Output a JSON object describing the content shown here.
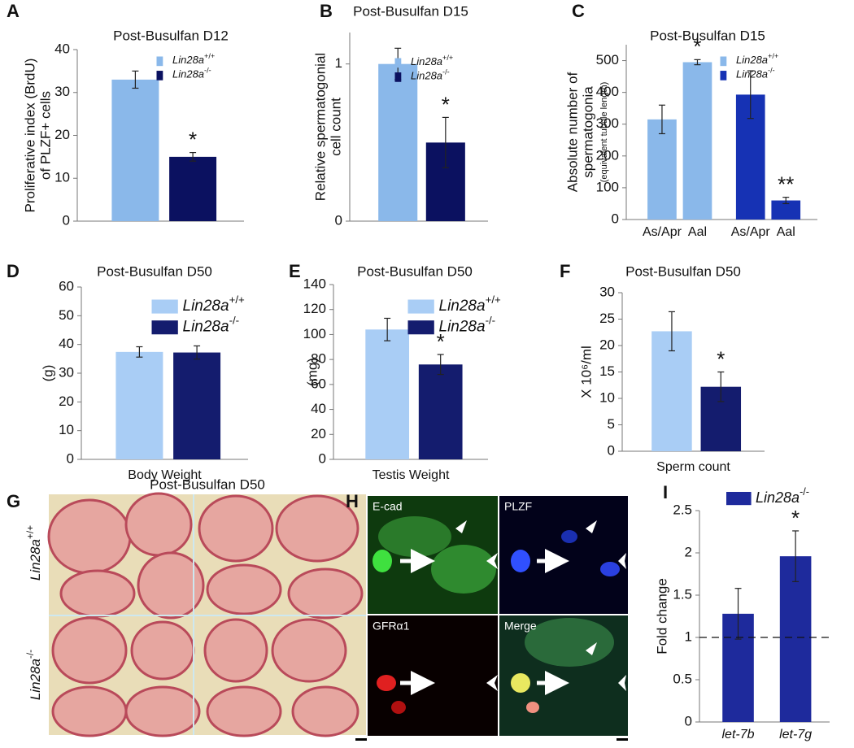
{
  "chart_data": [
    {
      "label": "A",
      "type": "bar",
      "title": "Post-Busulfan D12",
      "ylabel": [
        "Proliferative index (BrdU)",
        "of PLZF+ cells"
      ],
      "categories": [
        null
      ],
      "series": [
        {
          "name": "Lin28a+/+",
          "color": "#8ab8ea",
          "values": [
            33
          ],
          "errors": [
            2
          ]
        },
        {
          "name": "Lin28a-/-",
          "color": "#0b1160",
          "values": [
            15
          ],
          "errors": [
            1
          ],
          "annotations": [
            "*"
          ]
        }
      ],
      "ylim": [
        0,
        40
      ],
      "yticks": [
        0,
        10,
        20,
        30,
        40
      ]
    },
    {
      "label": "B",
      "type": "bar",
      "title": "Post-Busulfan D15",
      "ylabel": [
        "Relative spermatogonial",
        "cell count"
      ],
      "categories": [
        null
      ],
      "series": [
        {
          "name": "Lin28a+/+",
          "color": "#8ab8ea",
          "values": [
            1.0
          ],
          "errors": [
            0.1
          ]
        },
        {
          "name": "Lin28a-/-",
          "color": "#0b1160",
          "values": [
            0.5
          ],
          "errors": [
            0.16
          ],
          "annotations": [
            "*"
          ]
        }
      ],
      "ylim": [
        0,
        1.2
      ],
      "yticks": [
        0,
        1
      ]
    },
    {
      "label": "C",
      "type": "bar",
      "title": "Post-Busulfan D15",
      "ylabel": [
        "Absolute number of",
        "spermatogonia",
        "(equivalent tubule length)"
      ],
      "categories": [
        "As/Apr",
        "Aal"
      ],
      "group_by": "series",
      "series": [
        {
          "name": "Lin28a+/+",
          "color": "#8ab8ea",
          "values": [
            315,
            495
          ],
          "errors": [
            45,
            8
          ],
          "annotations": [
            null,
            "*"
          ]
        },
        {
          "name": "Lin28a-/-",
          "color": "#1632b4",
          "values": [
            393,
            60
          ],
          "errors": [
            75,
            10
          ],
          "annotations": [
            null,
            "**"
          ]
        }
      ],
      "ylim": [
        0,
        550
      ],
      "yticks": [
        0,
        100,
        200,
        300,
        400,
        500
      ]
    },
    {
      "label": "D",
      "type": "bar",
      "title": "Post-Busulfan D50",
      "ylabel": [
        "(g)"
      ],
      "xlabel": "Body Weight",
      "categories": [
        null
      ],
      "series": [
        {
          "name": "Lin28a+/+",
          "color": "#a9cdf5",
          "values": [
            37.4
          ],
          "errors": [
            1.8
          ]
        },
        {
          "name": "Lin28a-/-",
          "color": "#141c6e",
          "values": [
            37.2
          ],
          "errors": [
            2.3
          ]
        }
      ],
      "ylim": [
        0,
        60
      ],
      "yticks": [
        0,
        10,
        20,
        30,
        40,
        50,
        60
      ]
    },
    {
      "label": "E",
      "type": "bar",
      "title": "Post-Busulfan D50",
      "ylabel": [
        "(mg)"
      ],
      "xlabel": "Testis Weight",
      "categories": [
        null
      ],
      "series": [
        {
          "name": "Lin28a+/+",
          "color": "#a9cdf5",
          "values": [
            104
          ],
          "errors": [
            9
          ]
        },
        {
          "name": "Lin28a-/-",
          "color": "#141c6e",
          "values": [
            76
          ],
          "errors": [
            8
          ],
          "annotations": [
            "*"
          ]
        }
      ],
      "ylim": [
        0,
        140
      ],
      "yticks": [
        0,
        20,
        40,
        60,
        80,
        100,
        120,
        140
      ]
    },
    {
      "label": "F",
      "type": "bar",
      "title": "Post-Busulfan D50",
      "ylabel": [
        "X 10⁶/ml"
      ],
      "xlabel": "Sperm count",
      "categories": [
        null,
        null
      ],
      "values": [
        22.7,
        12.2
      ],
      "errors": [
        3.7,
        2.8
      ],
      "colors": [
        "#a9cdf5",
        "#141c6e"
      ],
      "annotations": [
        null,
        "*"
      ],
      "ylim": [
        0,
        30
      ],
      "yticks": [
        0,
        5,
        10,
        15,
        20,
        25,
        30
      ]
    },
    {
      "label": "I",
      "type": "bar",
      "ylabel": [
        "Fold change"
      ],
      "categories": [
        "let-7b",
        "let-7g"
      ],
      "series": [
        {
          "name": "Lin28a-/-",
          "color": "#1e2a9c",
          "values": [
            1.28,
            1.96
          ],
          "errors": [
            0.3,
            0.3
          ],
          "annotations": [
            null,
            "*"
          ]
        }
      ],
      "reference_line": 1,
      "ylim": [
        0,
        2.5
      ],
      "yticks": [
        0,
        0.5,
        1,
        1.5,
        2,
        2.5
      ]
    }
  ],
  "images": [
    {
      "label": "G",
      "title": "Post-Busulfan D50",
      "rows": [
        "Lin28a+/+",
        "Lin28a-/-"
      ]
    },
    {
      "label": "H",
      "panels": [
        "E-cad",
        "PLZF",
        "GFRα1",
        "Merge"
      ]
    }
  ]
}
